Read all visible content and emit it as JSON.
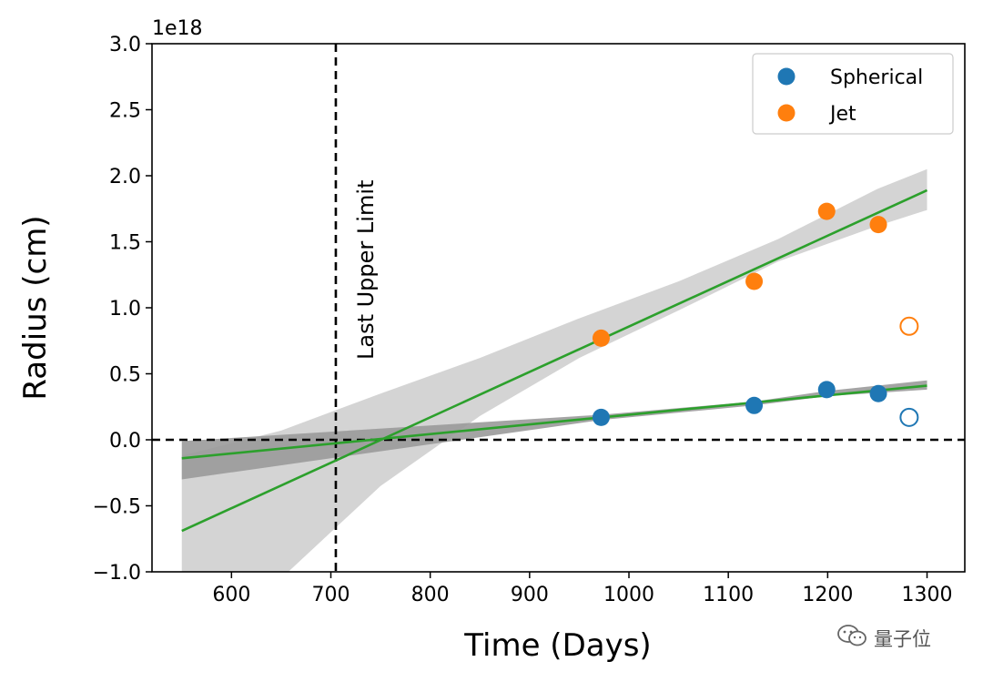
{
  "chart_data": {
    "type": "scatter",
    "title": "",
    "xlabel": "Time (Days)",
    "ylabel": "Radius (cm)",
    "y_scale_label": "1e18",
    "xlim": [
      520,
      1338
    ],
    "ylim": [
      -1.0,
      3.0
    ],
    "xticks": [
      600,
      700,
      800,
      900,
      1000,
      1100,
      1200,
      1300
    ],
    "yticks": [
      -1.0,
      -0.5,
      0.0,
      0.5,
      1.0,
      1.5,
      2.0,
      2.5,
      3.0
    ],
    "ytick_labels": [
      "−1.0",
      "−0.5",
      "0.0",
      "0.5",
      "1.0",
      "1.5",
      "2.0",
      "2.5",
      "3.0"
    ],
    "grid": false,
    "legend_position": "top-right",
    "series": [
      {
        "name": "Spherical",
        "color": "#1f77b4",
        "points": [
          [
            972,
            0.17
          ],
          [
            1126,
            0.26
          ],
          [
            1199,
            0.38
          ],
          [
            1251,
            0.35
          ]
        ],
        "open_points": [
          [
            1282,
            0.17
          ]
        ],
        "fit": {
          "x": [
            550,
            1300
          ],
          "y": [
            -0.14,
            0.41
          ],
          "color": "#2ca02c"
        },
        "band": {
          "x": [
            550,
            972,
            1126,
            1199,
            1300
          ],
          "lower": [
            -0.3,
            0.15,
            0.26,
            0.33,
            0.38
          ],
          "upper": [
            -0.01,
            0.19,
            0.29,
            0.37,
            0.45
          ],
          "color": "#9a9a9a"
        }
      },
      {
        "name": "Jet",
        "color": "#ff7f0e",
        "points": [
          [
            972,
            0.77
          ],
          [
            1126,
            1.2
          ],
          [
            1199,
            1.73
          ],
          [
            1251,
            1.63
          ]
        ],
        "open_points": [
          [
            1282,
            0.86
          ]
        ],
        "fit": {
          "x": [
            550,
            1300
          ],
          "y": [
            -0.69,
            1.89
          ],
          "color": "#2ca02c"
        },
        "band": {
          "x": [
            550,
            650,
            750,
            850,
            950,
            1050,
            1150,
            1250,
            1300
          ],
          "lower": [
            -1.05,
            -1.05,
            -0.35,
            0.18,
            0.62,
            0.98,
            1.35,
            1.62,
            1.74
          ],
          "upper": [
            -0.12,
            0.07,
            0.35,
            0.62,
            0.92,
            1.2,
            1.52,
            1.9,
            2.05
          ],
          "color": "#d4d4d4"
        }
      }
    ],
    "reference_lines": [
      {
        "orientation": "horizontal",
        "value": 0.0,
        "style": "dashed",
        "color": "#000000"
      },
      {
        "orientation": "vertical",
        "value": 705,
        "style": "dashed",
        "color": "#000000",
        "label": "Last Upper Limit"
      }
    ]
  },
  "watermark": {
    "text": "量子位",
    "icon": "wechat-icon"
  }
}
